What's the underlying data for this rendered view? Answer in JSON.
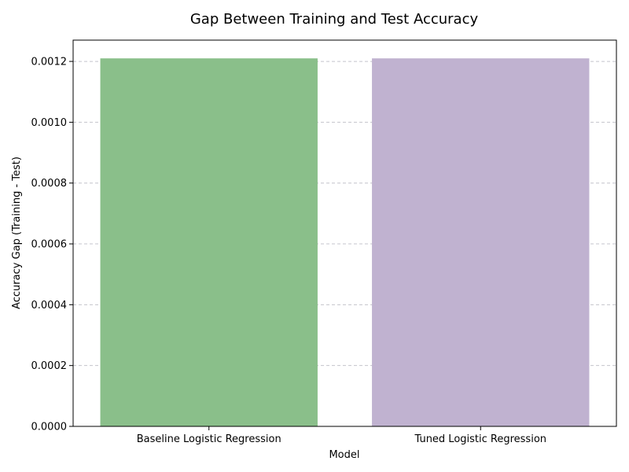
{
  "chart_data": {
    "type": "bar",
    "title": "Gap Between Training and Test Accuracy",
    "xlabel": "Model",
    "ylabel": "Accuracy Gap (Training - Test)",
    "categories": [
      "Baseline Logistic Regression",
      "Tuned Logistic Regression"
    ],
    "values": [
      0.00121,
      0.00121
    ],
    "colors": [
      "#8abf8a",
      "#c0b2d0"
    ],
    "ylim": [
      0,
      0.00127
    ],
    "yticks": [
      0,
      0.0002,
      0.0004,
      0.0006,
      0.0008,
      0.001,
      0.0012
    ],
    "ytick_labels": [
      "0.0000",
      "0.0002",
      "0.0004",
      "0.0006",
      "0.0008",
      "0.0010",
      "0.0012"
    ],
    "grid": "y-dashed",
    "legend": "none"
  }
}
